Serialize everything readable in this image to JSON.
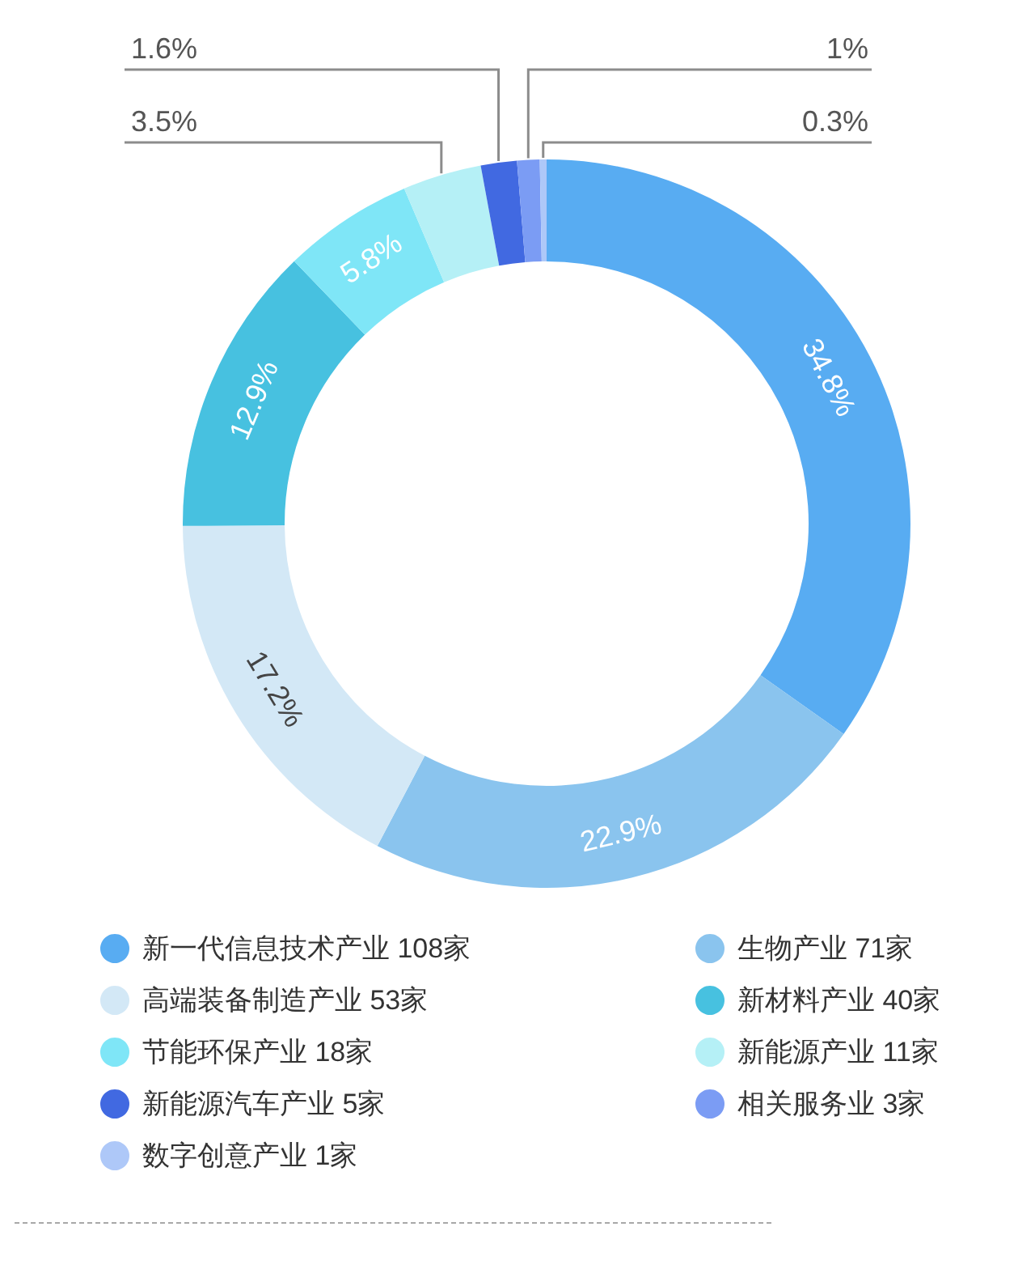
{
  "chart_data": {
    "type": "donut",
    "categories": [
      "新一代信息技术产业 108家",
      "生物产业 71家",
      "高端装备制造产业 53家",
      "新材料产业 40家",
      "节能环保产业 18家",
      "新能源产业 11家",
      "新能源汽车产业 5家",
      "相关服务业 3家",
      "数字创意产业 1家"
    ],
    "values": [
      34.8,
      22.9,
      17.2,
      12.9,
      5.8,
      3.5,
      1.6,
      1,
      0.3
    ],
    "value_labels": [
      "34.8%",
      "22.9%",
      "17.2%",
      "12.9%",
      "5.8%",
      "3.5%",
      "1.6%",
      "1%",
      "0.3%"
    ],
    "colors": [
      "#58acf2",
      "#8ac4ee",
      "#d3e8f6",
      "#47c1e0",
      "#7fe6f7",
      "#b5f0f6",
      "#4169e1",
      "#7b9cf4",
      "#aec8f8"
    ],
    "legend": "bottom"
  }
}
